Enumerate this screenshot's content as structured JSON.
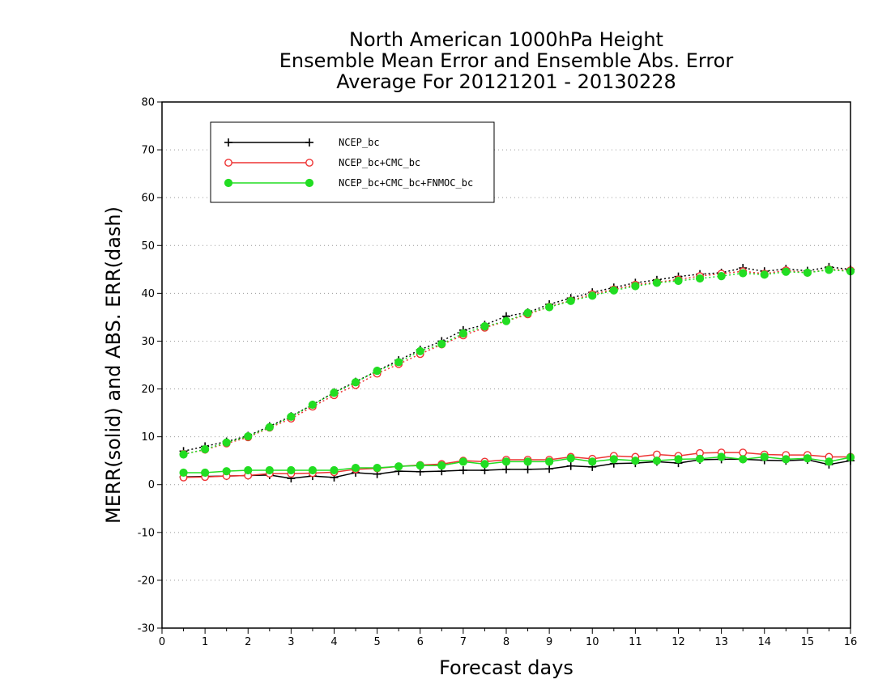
{
  "chart_data": {
    "type": "line",
    "title_lines": [
      "North American 1000hPa Height",
      "Ensemble Mean Error and Ensemble Abs. Error",
      "Average For 20121201 - 20130228"
    ],
    "xlabel": "Forecast days",
    "ylabel": "MERR(solid) and ABS. ERR(dash)",
    "xlim": [
      0,
      16
    ],
    "ylim": [
      -30,
      80
    ],
    "xticks": [
      "0",
      "1",
      "2",
      "3",
      "4",
      "5",
      "6",
      "7",
      "8",
      "9",
      "10",
      "11",
      "12",
      "13",
      "14",
      "15",
      "16"
    ],
    "yticks": [
      "-30",
      "-20",
      "-10",
      "0",
      "10",
      "20",
      "30",
      "40",
      "50",
      "60",
      "70",
      "80"
    ],
    "grid": "horizontal dotted",
    "legend_position": "top-left",
    "x": [
      0.5,
      1,
      1.5,
      2,
      2.5,
      3,
      3.5,
      4,
      4.5,
      5,
      5.5,
      6,
      6.5,
      7,
      7.5,
      8,
      8.5,
      9,
      9.5,
      10,
      10.5,
      11,
      11.5,
      12,
      12.5,
      13,
      13.5,
      14,
      14.5,
      15,
      15.5,
      16
    ],
    "series": [
      {
        "name": "NCEP_bc",
        "color": "#000000",
        "marker": "plus",
        "merr": [
          1.6,
          1.7,
          1.8,
          1.9,
          2.0,
          1.3,
          1.8,
          1.5,
          2.5,
          2.2,
          2.8,
          2.7,
          2.8,
          3.0,
          3.0,
          3.2,
          3.2,
          3.3,
          3.9,
          3.7,
          4.4,
          4.5,
          4.8,
          4.5,
          5.2,
          5.3,
          5.3,
          5.1,
          5.0,
          5.2,
          4.2,
          5.0
        ],
        "abs_err": [
          7.0,
          8.0,
          9.0,
          10.2,
          12.2,
          14.3,
          16.7,
          19.3,
          21.5,
          23.8,
          26.0,
          28.2,
          30.0,
          32.3,
          33.4,
          35.2,
          36.0,
          37.7,
          39.0,
          40.2,
          41.2,
          42.2,
          42.8,
          43.5,
          44.0,
          44.3,
          45.3,
          44.6,
          45.1,
          44.7,
          45.5,
          45.0
        ]
      },
      {
        "name": "NCEP_bc+CMC_bc",
        "color": "#ee3333",
        "marker": "open-circle",
        "merr": [
          1.5,
          1.6,
          1.8,
          1.9,
          2.3,
          2.3,
          2.4,
          2.6,
          3.2,
          3.4,
          3.8,
          4.1,
          4.3,
          5.0,
          4.8,
          5.2,
          5.2,
          5.2,
          5.8,
          5.4,
          6.0,
          5.8,
          6.3,
          6.0,
          6.6,
          6.7,
          6.7,
          6.3,
          6.2,
          6.2,
          5.8,
          5.8
        ],
        "abs_err": [
          6.4,
          7.3,
          8.6,
          9.9,
          11.9,
          13.8,
          16.3,
          18.7,
          20.8,
          23.2,
          25.2,
          27.3,
          29.3,
          31.2,
          32.8,
          34.2,
          35.6,
          37.2,
          38.5,
          39.8,
          40.8,
          41.8,
          42.3,
          42.9,
          43.6,
          44.1,
          44.6,
          44.1,
          44.8,
          44.3,
          45.0,
          44.8
        ]
      },
      {
        "name": "NCEP_bc+CMC_bc+FNMOC_bc",
        "color": "#22dd22",
        "marker": "filled-circle",
        "merr": [
          2.5,
          2.5,
          2.8,
          3.0,
          3.0,
          3.0,
          3.0,
          3.0,
          3.5,
          3.5,
          3.8,
          4.0,
          4.0,
          4.8,
          4.3,
          4.8,
          4.8,
          4.8,
          5.5,
          4.8,
          5.3,
          5.0,
          5.0,
          5.3,
          5.4,
          5.8,
          5.3,
          5.8,
          5.3,
          5.5,
          4.8,
          5.7
        ],
        "abs_err": [
          6.3,
          7.4,
          8.8,
          10.1,
          12.0,
          14.2,
          16.7,
          19.2,
          21.4,
          23.8,
          25.6,
          27.9,
          29.4,
          31.6,
          33.1,
          34.2,
          35.9,
          37.1,
          38.4,
          39.5,
          40.6,
          41.5,
          42.2,
          42.6,
          43.1,
          43.6,
          44.2,
          43.9,
          44.5,
          44.3,
          44.9,
          44.6
        ]
      }
    ]
  }
}
